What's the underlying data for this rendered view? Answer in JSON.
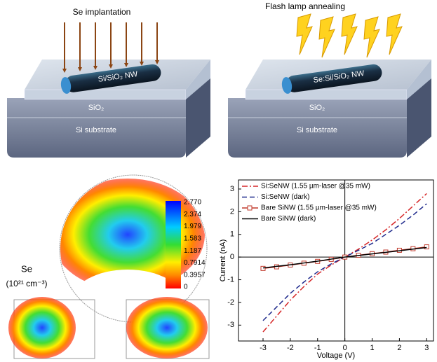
{
  "diagrams": [
    {
      "process": "Se implantation",
      "wire": "Si/SiO₂ NW",
      "layer": "SiO₂",
      "substrate": "Si substrate"
    },
    {
      "process": "Flash lamp annealing",
      "wire": "Se:Si/SiO₂ NW",
      "layer": "SiO₂",
      "substrate": "Si substrate"
    }
  ],
  "colormap": {
    "element": "Se",
    "unit": "(10²¹ cm⁻³)",
    "ticks": [
      "2.770",
      "2.374",
      "1.979",
      "1.583",
      "1.187",
      "0.7914",
      "0.3957",
      "0"
    ]
  },
  "chart_data": {
    "type": "line",
    "xlabel": "Voltage (V)",
    "ylabel": "Current (nA)",
    "x": [
      -3,
      -2.5,
      -2,
      -1.5,
      -1,
      -0.5,
      0,
      0.5,
      1,
      1.5,
      2,
      2.5,
      3
    ],
    "series": [
      {
        "name": "Si:SeNW (1.55 µm-laser @35 mW)",
        "color": "#d62728",
        "style": "dash-dot",
        "values": [
          -3.3,
          -2.6,
          -1.9,
          -1.3,
          -0.75,
          -0.35,
          0,
          0.35,
          0.75,
          1.2,
          1.7,
          2.25,
          2.8
        ]
      },
      {
        "name": "Si:SeNW (dark)",
        "color": "#1f2a8c",
        "style": "dash",
        "values": [
          -2.8,
          -2.2,
          -1.6,
          -1.1,
          -0.65,
          -0.3,
          0,
          0.3,
          0.6,
          1.0,
          1.4,
          1.85,
          2.35
        ]
      },
      {
        "name": "Bare SiNW (1.55 µm-laser @35 mW)",
        "color": "#c0392b",
        "style": "square",
        "values": [
          -0.5,
          -0.43,
          -0.35,
          -0.27,
          -0.19,
          -0.1,
          0,
          0.08,
          0.15,
          0.22,
          0.3,
          0.37,
          0.45
        ]
      },
      {
        "name": "Bare SiNW (dark)",
        "color": "#000000",
        "style": "solid",
        "values": [
          -0.48,
          -0.41,
          -0.34,
          -0.26,
          -0.18,
          -0.09,
          0,
          0.07,
          0.14,
          0.21,
          0.28,
          0.35,
          0.42
        ]
      }
    ],
    "xlim": [
      -3.9,
      3.25
    ],
    "ylim": [
      -3.7,
      3.4
    ],
    "xticks": [
      -3,
      -2,
      -1,
      0,
      1,
      2,
      3
    ],
    "yticks": [
      -3,
      -2,
      -1,
      0,
      1,
      2,
      3
    ],
    "zero_lines": true
  }
}
